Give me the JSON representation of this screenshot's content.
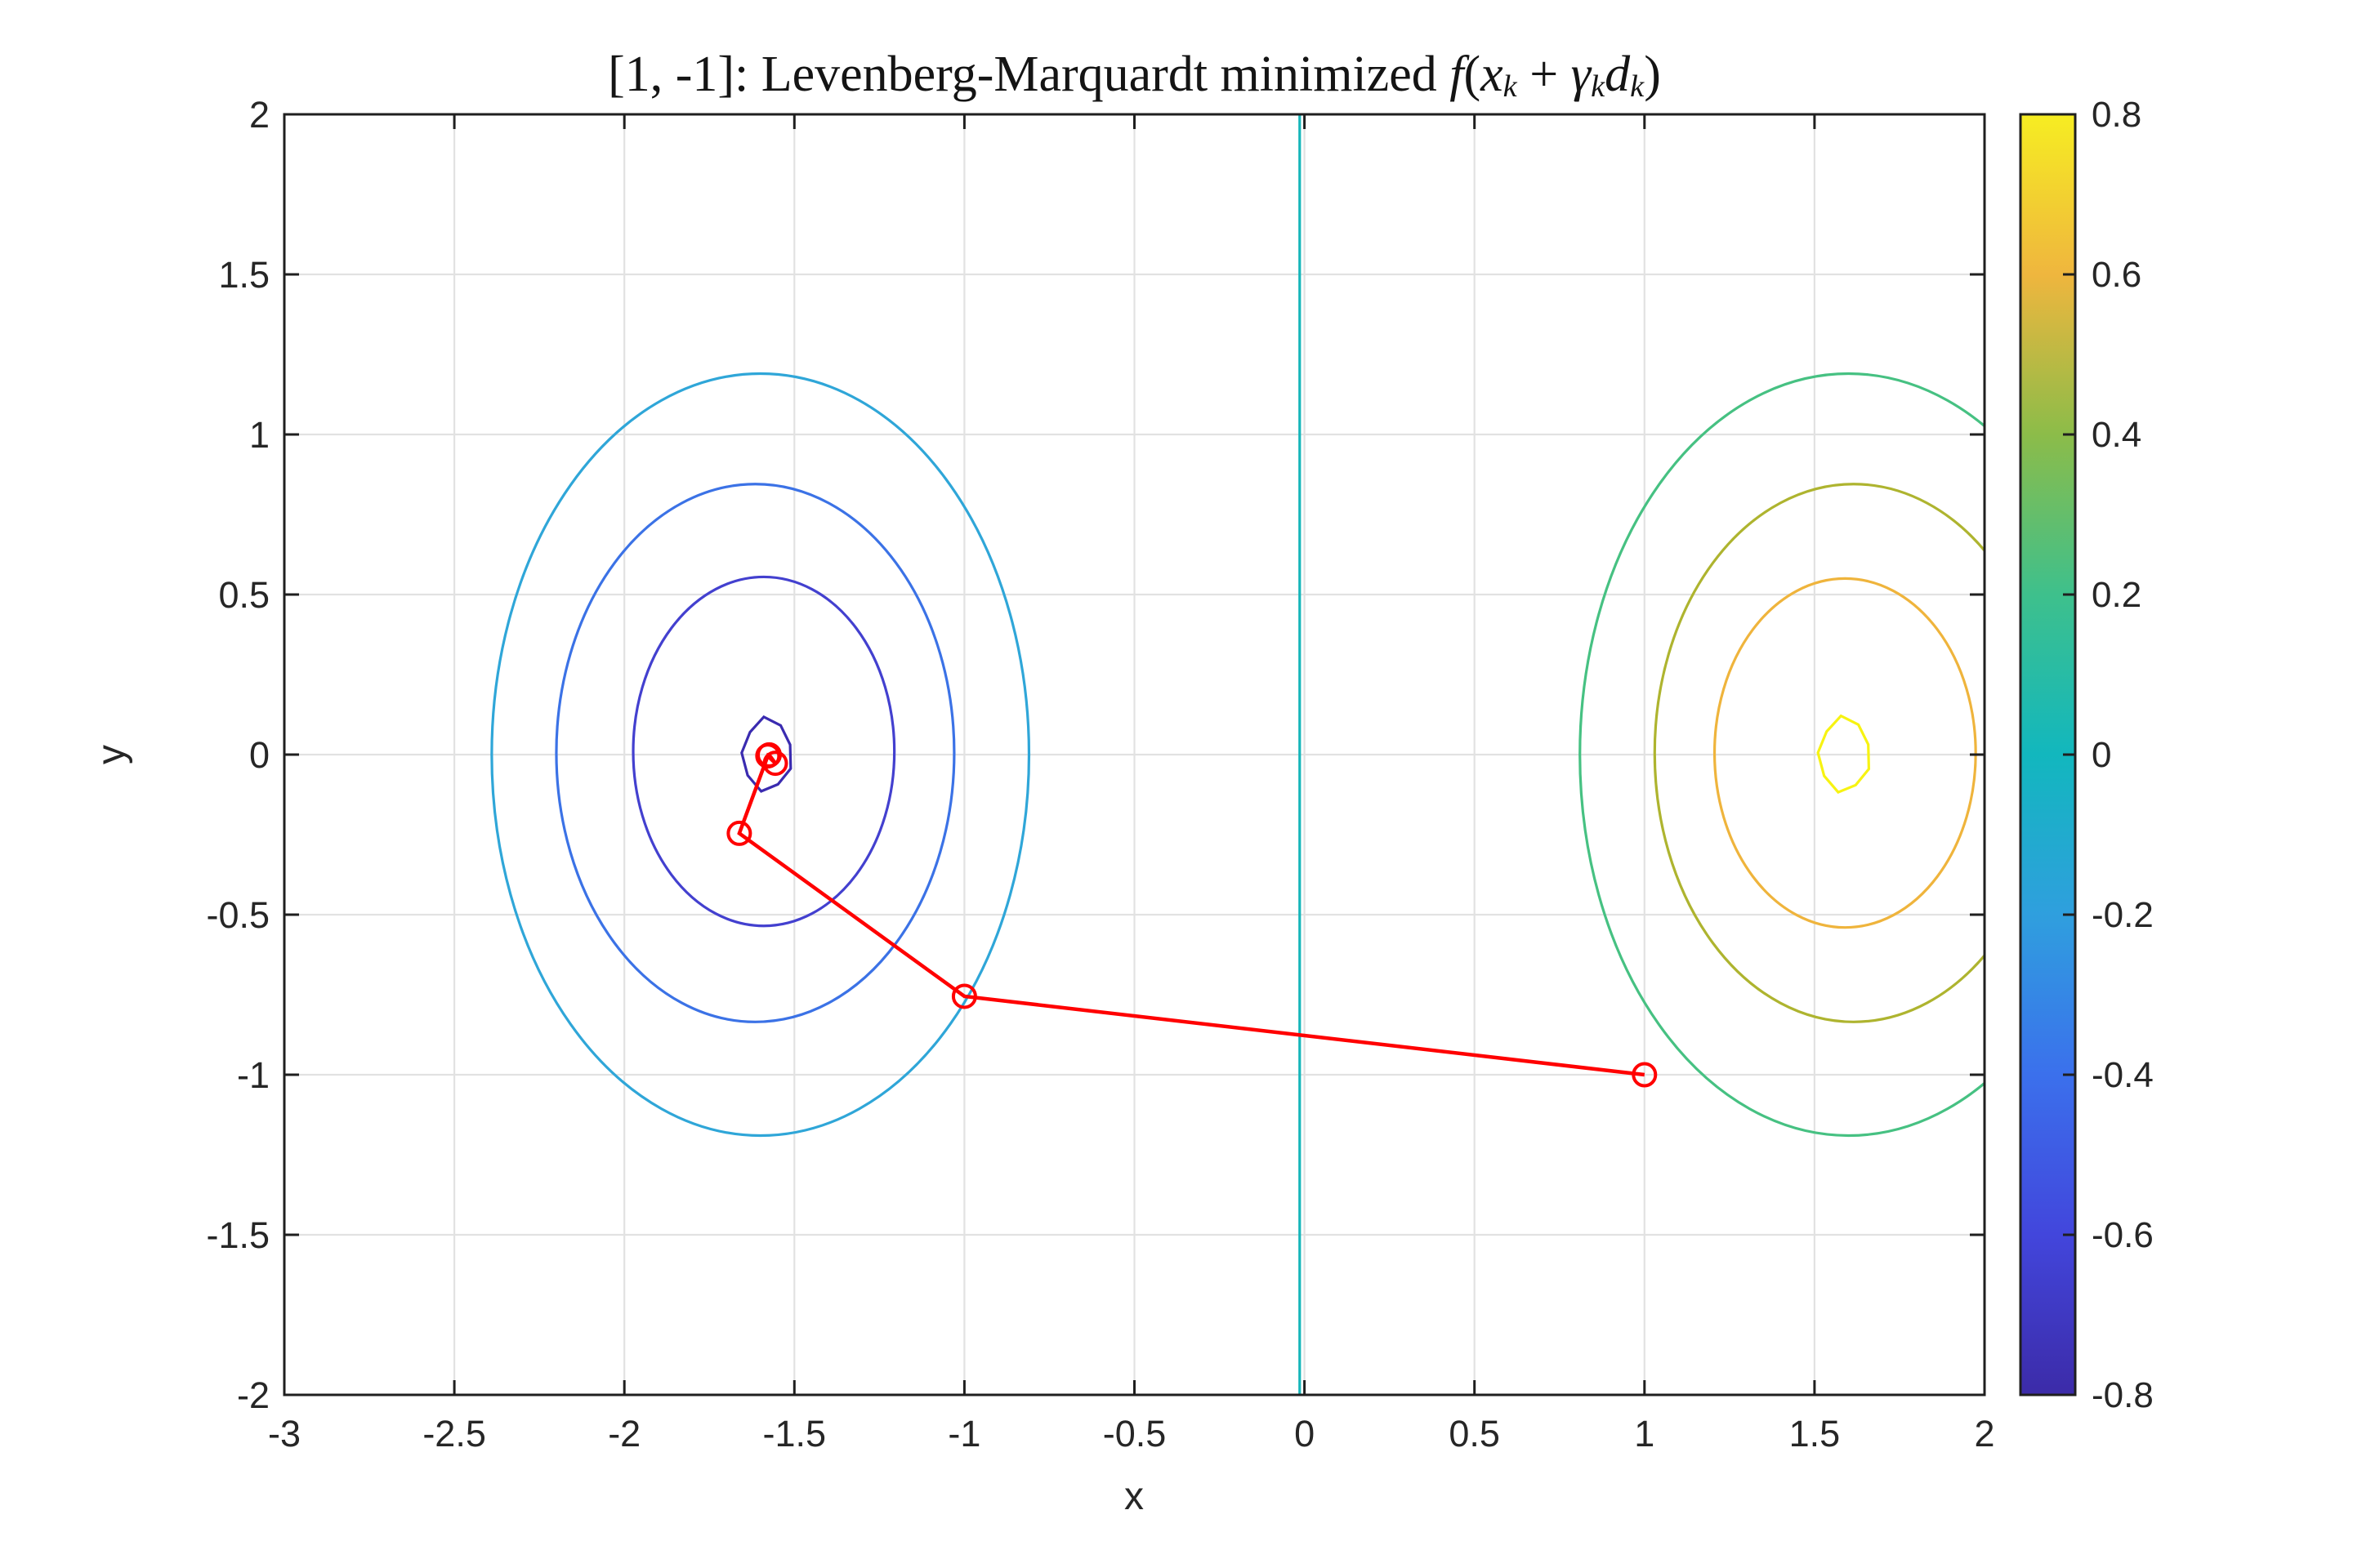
{
  "figure": {
    "title_plain": "[1, -1]: Levenberg-Marquardt minimized f(xk + γkdk)",
    "title_segments": [
      {
        "text": "[1, -1]: Levenberg-Marquardt minimized ",
        "style": "rm"
      },
      {
        "text": "f",
        "style": "it"
      },
      {
        "text": "(",
        "style": "rm"
      },
      {
        "text": "x",
        "style": "it"
      },
      {
        "text": "k",
        "style": "sub"
      },
      {
        "text": " + ",
        "style": "rm"
      },
      {
        "text": "γ",
        "style": "it"
      },
      {
        "text": "k",
        "style": "sub"
      },
      {
        "text": "d",
        "style": "it"
      },
      {
        "text": "k",
        "style": "sub"
      },
      {
        "text": ")",
        "style": "rm"
      }
    ]
  },
  "chart_data": {
    "type": "contour",
    "title": "[1, -1]: Levenberg-Marquardt minimized f(x_k + γ_k d_k)",
    "xlabel": "x",
    "ylabel": "y",
    "xlim": [
      -3,
      2
    ],
    "ylim": [
      -2,
      2
    ],
    "grid": true,
    "xticks": {
      "values": [
        -3,
        -2.5,
        -2,
        -1.5,
        -1,
        -0.5,
        0,
        0.5,
        1,
        1.5,
        2
      ],
      "labels": [
        "-3",
        "-2.5",
        "-2",
        "-1.5",
        "-1",
        "-0.5",
        "0",
        "0.5",
        "1",
        "1.5",
        "2"
      ]
    },
    "yticks": {
      "values": [
        -2,
        -1.5,
        -1,
        -0.5,
        0,
        0.5,
        1,
        1.5,
        2
      ],
      "labels": [
        "-2",
        "-1.5",
        "-1",
        "-0.5",
        "0",
        "0.5",
        "1",
        "1.5",
        "2"
      ]
    },
    "contours": [
      {
        "level": -0.1,
        "shape": "ellipse",
        "center": [
          -1.6,
          0.0
        ],
        "rx": 0.79,
        "ry": 1.19,
        "color": "#2FA6D8"
      },
      {
        "level": -0.3,
        "shape": "ellipse",
        "center": [
          -1.615,
          0.005
        ],
        "rx": 0.585,
        "ry": 0.84,
        "color": "#3B72E6"
      },
      {
        "level": -0.5,
        "shape": "ellipse",
        "center": [
          -1.59,
          0.01
        ],
        "rx": 0.384,
        "ry": 0.545,
        "color": "#4340CF"
      },
      {
        "level": -0.7,
        "shape": "polygon-ring",
        "center": [
          -1.58,
          0.0
        ],
        "rx": 0.075,
        "ry": 0.112,
        "color": "#3A2BB0"
      },
      {
        "level": 0.0,
        "shape": "vline",
        "x": -0.014,
        "color": "#16B6BA"
      },
      {
        "level": 0.1,
        "shape": "ellipse",
        "center": [
          1.6,
          0.0
        ],
        "rx": 0.79,
        "ry": 1.19,
        "color": "#46C182"
      },
      {
        "level": 0.3,
        "shape": "ellipse",
        "center": [
          1.615,
          0.005
        ],
        "rx": 0.585,
        "ry": 0.84,
        "color": "#AEB42F"
      },
      {
        "level": 0.5,
        "shape": "ellipse",
        "center": [
          1.59,
          0.005
        ],
        "rx": 0.384,
        "ry": 0.545,
        "color": "#EFB43C"
      },
      {
        "level": 0.7,
        "shape": "polygon-ring",
        "center": [
          1.588,
          0.0
        ],
        "rx": 0.078,
        "ry": 0.115,
        "color": "#F7F312"
      }
    ],
    "optimization_path": {
      "name": "Levenberg-Marquardt iterates",
      "color": "#FF0000",
      "marker": "circle",
      "start_point": [
        1,
        -1
      ],
      "points": [
        [
          1.0,
          -1.0
        ],
        [
          -1.0,
          -0.755
        ],
        [
          -1.662,
          -0.246
        ],
        [
          -1.578,
          -0.004
        ],
        [
          -1.556,
          -0.027
        ],
        [
          -1.574,
          -0.001
        ]
      ]
    },
    "colorbar": {
      "min": -0.8,
      "max": 0.8,
      "ticks": {
        "values": [
          -0.8,
          -0.6,
          -0.4,
          -0.2,
          0,
          0.2,
          0.4,
          0.6,
          0.8
        ],
        "labels": [
          "-0.8",
          "-0.6",
          "-0.4",
          "-0.2",
          "0",
          "0.2",
          "0.4",
          "0.6",
          "0.8"
        ]
      },
      "colormap": "parula",
      "gradient_stops": [
        {
          "pos": 0.0,
          "color": "#3C2BA8"
        },
        {
          "pos": 0.125,
          "color": "#4246DC"
        },
        {
          "pos": 0.25,
          "color": "#3B70EC"
        },
        {
          "pos": 0.375,
          "color": "#2F9FDE"
        },
        {
          "pos": 0.5,
          "color": "#12B7BE"
        },
        {
          "pos": 0.625,
          "color": "#3EC08C"
        },
        {
          "pos": 0.75,
          "color": "#8CBC49"
        },
        {
          "pos": 0.875,
          "color": "#EFB63E"
        },
        {
          "pos": 1.0,
          "color": "#F6ED22"
        }
      ]
    },
    "style": {
      "background": "#FFFFFF",
      "grid_color": "#E2E2E2",
      "axis_color": "#1F1F1F",
      "label_color": "#262626"
    }
  }
}
